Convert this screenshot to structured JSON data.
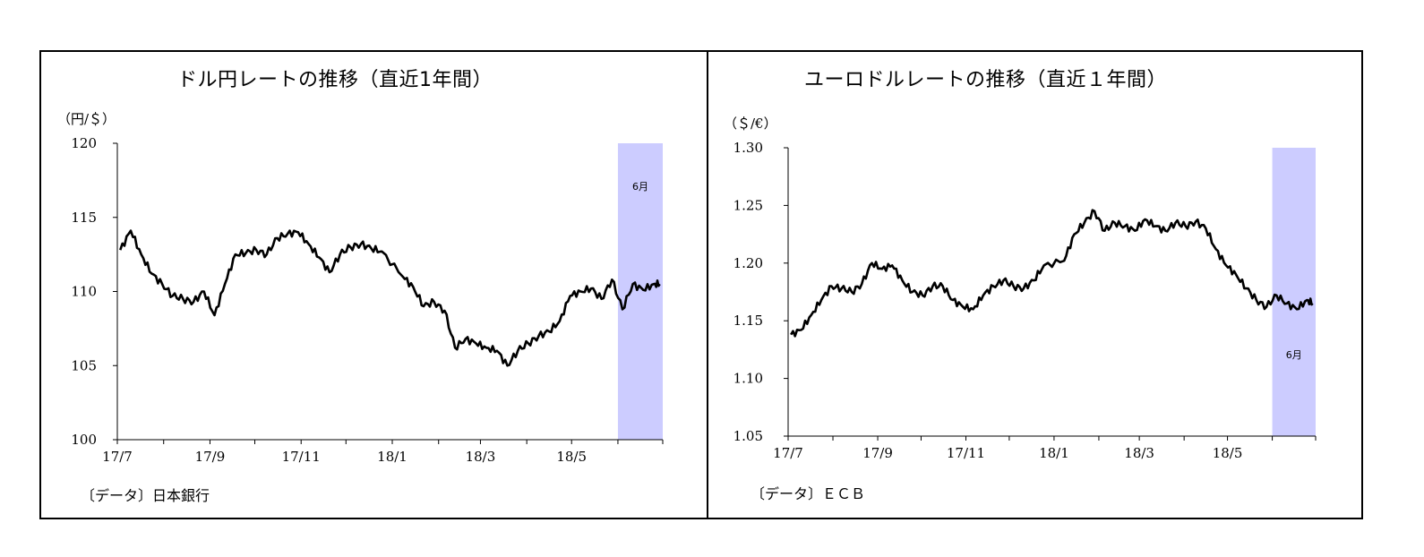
{
  "charts": [
    {
      "title": "ドル円レートの推移（直近1年間）",
      "unit": "（円/＄）",
      "source": "〔データ〕日本銀行",
      "highlight_label": "6月",
      "colors": {
        "line": "#000000",
        "highlight": "#ccccff"
      }
    },
    {
      "title": "ユーロドルレートの推移（直近１年間）",
      "unit": "（＄/€）",
      "source": "〔データ〕ＥＣＢ",
      "highlight_label": "6月",
      "colors": {
        "line": "#000000",
        "highlight": "#ccccff"
      }
    }
  ],
  "chart_data": [
    {
      "type": "line",
      "title": "ドル円レートの推移（直近1年間）",
      "ylabel": "（円/＄）",
      "ylim": [
        100,
        120
      ],
      "y_ticks": [
        "120",
        "115",
        "110",
        "105",
        "100"
      ],
      "x_ticks": [
        "17/7",
        "17/9",
        "17/11",
        "18/1",
        "18/3",
        "18/5"
      ],
      "xlim": [
        "2017-07-01",
        "2018-06-30"
      ],
      "highlight": {
        "from": "2018-06-01",
        "to": "2018-06-30",
        "label": "6月"
      },
      "series": [
        {
          "x": [
            "2017-07-03",
            "2017-07-10",
            "2017-07-17",
            "2017-07-24",
            "2017-07-31",
            "2017-08-07",
            "2017-08-14",
            "2017-08-21",
            "2017-08-28",
            "2017-09-04",
            "2017-09-11",
            "2017-09-18",
            "2017-09-25",
            "2017-10-02",
            "2017-10-09",
            "2017-10-16",
            "2017-10-23",
            "2017-10-30",
            "2017-11-06",
            "2017-11-13",
            "2017-11-20",
            "2017-11-27",
            "2017-12-04",
            "2017-12-11",
            "2017-12-18",
            "2017-12-25",
            "2018-01-08",
            "2018-01-15",
            "2018-01-22",
            "2018-01-29",
            "2018-02-05",
            "2018-02-12",
            "2018-02-19",
            "2018-02-26",
            "2018-03-05",
            "2018-03-12",
            "2018-03-19",
            "2018-03-26",
            "2018-04-02",
            "2018-04-09",
            "2018-04-16",
            "2018-04-23",
            "2018-04-30",
            "2018-05-07",
            "2018-05-14",
            "2018-05-21",
            "2018-05-28",
            "2018-06-04",
            "2018-06-11",
            "2018-06-18",
            "2018-06-25",
            "2018-06-29"
          ],
          "values": [
            112.8,
            114.1,
            112.5,
            111.2,
            110.5,
            109.7,
            109.5,
            109.3,
            110.0,
            108.4,
            110.5,
            112.5,
            112.6,
            112.8,
            112.5,
            113.6,
            113.9,
            114.0,
            113.2,
            112.3,
            111.3,
            112.5,
            113.0,
            113.2,
            112.9,
            112.7,
            111.0,
            110.3,
            109.0,
            109.3,
            108.7,
            106.2,
            106.8,
            106.5,
            106.2,
            106.0,
            105.0,
            106.0,
            106.5,
            107.0,
            107.3,
            108.0,
            109.7,
            110.0,
            110.2,
            109.5,
            110.8,
            108.8,
            110.5,
            110.1,
            110.5,
            110.5
          ]
        }
      ]
    },
    {
      "type": "line",
      "title": "ユーロドルレートの推移（直近１年間）",
      "ylabel": "（＄/€）",
      "ylim": [
        1.05,
        1.3
      ],
      "y_ticks": [
        "1.30",
        "1.25",
        "1.20",
        "1.15",
        "1.10",
        "1.05"
      ],
      "x_ticks": [
        "17/7",
        "17/9",
        "17/11",
        "18/1",
        "18/3",
        "18/5"
      ],
      "xlim": [
        "2017-07-01",
        "2018-06-30"
      ],
      "highlight": {
        "from": "2018-06-01",
        "to": "2018-06-30",
        "label": "6月"
      },
      "series": [
        {
          "x": [
            "2017-07-03",
            "2017-07-10",
            "2017-07-17",
            "2017-07-24",
            "2017-07-31",
            "2017-08-07",
            "2017-08-14",
            "2017-08-21",
            "2017-08-28",
            "2017-09-04",
            "2017-09-11",
            "2017-09-18",
            "2017-09-25",
            "2017-10-02",
            "2017-10-09",
            "2017-10-16",
            "2017-10-23",
            "2017-10-30",
            "2017-11-06",
            "2017-11-13",
            "2017-11-20",
            "2017-11-27",
            "2017-12-04",
            "2017-12-11",
            "2017-12-18",
            "2017-12-25",
            "2018-01-08",
            "2018-01-15",
            "2018-01-22",
            "2018-01-29",
            "2018-02-05",
            "2018-02-12",
            "2018-02-19",
            "2018-02-26",
            "2018-03-05",
            "2018-03-12",
            "2018-03-19",
            "2018-03-26",
            "2018-04-02",
            "2018-04-09",
            "2018-04-16",
            "2018-04-23",
            "2018-04-30",
            "2018-05-07",
            "2018-05-14",
            "2018-05-21",
            "2018-05-28",
            "2018-06-04",
            "2018-06-11",
            "2018-06-18",
            "2018-06-25",
            "2018-06-29"
          ],
          "values": [
            1.138,
            1.142,
            1.155,
            1.168,
            1.18,
            1.178,
            1.175,
            1.182,
            1.2,
            1.195,
            1.198,
            1.185,
            1.175,
            1.172,
            1.18,
            1.18,
            1.168,
            1.162,
            1.16,
            1.172,
            1.18,
            1.185,
            1.18,
            1.178,
            1.185,
            1.198,
            1.202,
            1.225,
            1.235,
            1.245,
            1.228,
            1.235,
            1.232,
            1.228,
            1.238,
            1.232,
            1.228,
            1.235,
            1.232,
            1.236,
            1.23,
            1.212,
            1.198,
            1.19,
            1.178,
            1.168,
            1.162,
            1.172,
            1.165,
            1.16,
            1.168,
            1.165
          ]
        }
      ]
    }
  ]
}
